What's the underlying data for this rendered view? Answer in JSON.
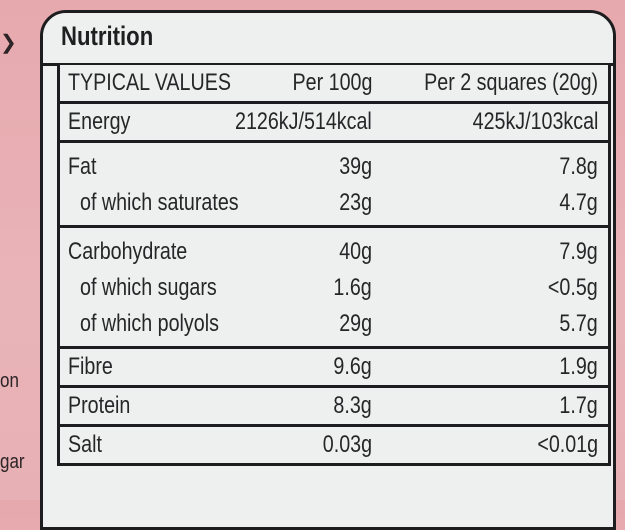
{
  "edge_text": {
    "left_lines": [
      "on",
      "gar"
    ]
  },
  "panel": {
    "title": "Nutrition"
  },
  "table": {
    "headers": {
      "label": "TYPICAL VALUES",
      "per_100g": "Per 100g",
      "per_serving": "Per 2 squares (20g)"
    },
    "sections": [
      {
        "rows": [
          {
            "label": "Energy",
            "per_100g": "2126kJ/514kcal",
            "per_serving": "425kJ/103kcal",
            "sub": false
          }
        ]
      },
      {
        "rows": [
          {
            "label": "Fat",
            "per_100g": "39g",
            "per_serving": "7.8g",
            "sub": false
          },
          {
            "label": "of which saturates",
            "per_100g": "23g",
            "per_serving": "4.7g",
            "sub": true
          }
        ]
      },
      {
        "rows": [
          {
            "label": "Carbohydrate",
            "per_100g": "40g",
            "per_serving": "7.9g",
            "sub": false
          },
          {
            "label": "of which sugars",
            "per_100g": "1.6g",
            "per_serving": "<0.5g",
            "sub": true
          },
          {
            "label": "of which polyols",
            "per_100g": "29g",
            "per_serving": "5.7g",
            "sub": true
          }
        ]
      },
      {
        "rows": [
          {
            "label": "Fibre",
            "per_100g": "9.6g",
            "per_serving": "1.9g",
            "sub": false
          }
        ]
      },
      {
        "rows": [
          {
            "label": "Protein",
            "per_100g": "8.3g",
            "per_serving": "1.7g",
            "sub": false
          }
        ]
      },
      {
        "rows": [
          {
            "label": "Salt",
            "per_100g": "0.03g",
            "per_serving": "<0.01g",
            "sub": false
          }
        ]
      }
    ]
  }
}
